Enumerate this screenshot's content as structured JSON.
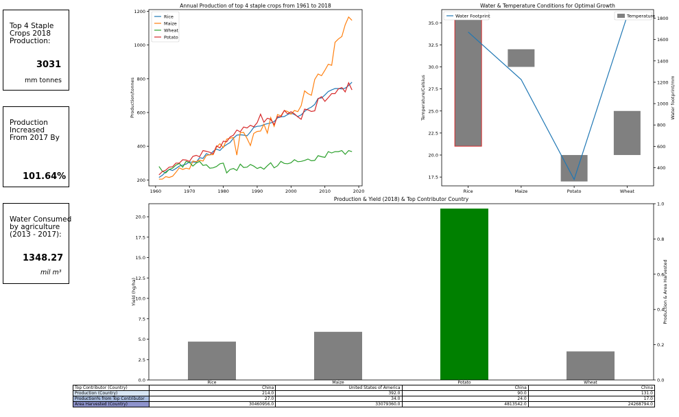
{
  "kpis": [
    {
      "label": "Top 4 Staple\nCrops 2018\nProduction:",
      "value": "3031",
      "unit": "mm tonnes"
    },
    {
      "label": "Production\nIncreased\nFrom 2017 By",
      "value": "101.64%",
      "unit": ""
    },
    {
      "label": "Water Consumed\nby agriculture\n(2013 - 2017):",
      "value": "1348.27",
      "unit": "mil m³"
    }
  ],
  "chart_data": [
    {
      "type": "line",
      "title": "Annual Production of top 4 staple crops from 1961 to 2018",
      "xlabel": "",
      "ylabel": "Production/tonnes",
      "xlim": [
        1958,
        2021
      ],
      "ylim": [
        165,
        1210
      ],
      "xticks": [
        1960,
        1970,
        1980,
        1990,
        2000,
        2010,
        2020
      ],
      "yticks": [
        200,
        400,
        600,
        800,
        1000,
        1200
      ],
      "legend": "top-left",
      "x": [
        1961,
        1962,
        1963,
        1964,
        1965,
        1966,
        1967,
        1968,
        1969,
        1970,
        1971,
        1972,
        1973,
        1974,
        1975,
        1976,
        1977,
        1978,
        1979,
        1980,
        1981,
        1982,
        1983,
        1984,
        1985,
        1986,
        1987,
        1988,
        1989,
        1990,
        1991,
        1992,
        1993,
        1994,
        1995,
        1996,
        1997,
        1998,
        1999,
        2000,
        2001,
        2002,
        2003,
        2004,
        2005,
        2006,
        2007,
        2008,
        2009,
        2010,
        2011,
        2012,
        2013,
        2014,
        2015,
        2016,
        2017,
        2018
      ],
      "series": [
        {
          "name": "Rice",
          "color": "#1f77b4",
          "values": [
            215,
            228,
            248,
            262,
            256,
            268,
            282,
            288,
            294,
            306,
            306,
            305,
            332,
            328,
            356,
            348,
            370,
            383,
            375,
            396,
            410,
            422,
            448,
            466,
            468,
            466,
            462,
            484,
            512,
            518,
            520,
            528,
            534,
            538,
            546,
            568,
            574,
            576,
            588,
            596,
            588,
            576,
            586,
            606,
            622,
            632,
            648,
            684,
            686,
            704,
            724,
            734,
            742,
            742,
            740,
            744,
            760,
            780
          ]
        },
        {
          "name": "Maize",
          "color": "#ff7f0e",
          "values": [
            205,
            205,
            220,
            215,
            222,
            245,
            272,
            262,
            270,
            265,
            312,
            308,
            318,
            312,
            345,
            350,
            350,
            395,
            415,
            392,
            442,
            448,
            452,
            347,
            480,
            482,
            446,
            404,
            476,
            488,
            490,
            530,
            478,
            570,
            518,
            588,
            580,
            612,
            606,
            590,
            612,
            605,
            640,
            728,
            712,
            702,
            796,
            828,
            818,
            850,
            886,
            880,
            1016,
            1036,
            1050,
            1120,
            1166,
            1146
          ]
        },
        {
          "name": "Wheat",
          "color": "#2ca02c",
          "values": [
            280,
            252,
            242,
            262,
            270,
            288,
            298,
            276,
            310,
            304,
            282,
            300,
            310,
            286,
            290,
            270,
            272,
            280,
            296,
            300,
            242,
            262,
            268,
            256,
            294,
            274,
            276,
            292,
            282,
            268,
            276,
            264,
            284,
            302,
            272,
            284,
            310,
            298,
            296,
            302,
            320,
            308,
            310,
            316,
            324,
            314,
            316,
            344,
            338,
            334,
            368,
            360,
            368,
            368,
            374,
            352,
            374,
            368
          ]
        },
        {
          "name": "Potato",
          "color": "#d62728",
          "values": [
            230,
            250,
            258,
            276,
            278,
            300,
            300,
            320,
            318,
            310,
            340,
            346,
            338,
            374,
            370,
            364,
            355,
            402,
            390,
            430,
            426,
            455,
            466,
            496,
            486,
            514,
            508,
            524,
            515,
            540,
            590,
            542,
            566,
            560,
            528,
            576,
            574,
            612,
            592,
            605,
            592,
            574,
            560,
            620,
            616,
            606,
            610,
            680,
            694,
            666,
            688,
            712,
            712,
            740,
            748,
            722,
            776,
            734
          ]
        }
      ]
    },
    {
      "type": "line",
      "title": "Water & Temperature Conditions for Optimal Growth",
      "categories": [
        "Rice",
        "Maize",
        "Potato",
        "Wheat"
      ],
      "ylabel": "Temperature/Celsius",
      "ylabel_right": "Water footprint/mm",
      "ylim": [
        16.5,
        36.5
      ],
      "yticks": [
        17.5,
        20.0,
        22.5,
        25.0,
        27.5,
        30.0,
        32.5,
        35.0
      ],
      "ylim_right": [
        230,
        1880
      ],
      "yticks_right": [
        400,
        600,
        800,
        1000,
        1200,
        1400,
        1600,
        1800
      ],
      "temperature_ranges": [
        [
          21,
          36
        ],
        [
          30,
          32
        ],
        [
          17,
          20
        ],
        [
          20,
          25
        ]
      ],
      "temperature_color": "#808080",
      "highlight": {
        "category": "Rice",
        "color": "#d62728"
      },
      "series": [
        {
          "name": "Water Footprint",
          "color": "#1f77b4",
          "values": [
            1670,
            1225,
            290,
            1820
          ]
        },
        {
          "name": "Temperature",
          "color": "#808080"
        }
      ],
      "marker": {
        "category": "Wheat",
        "value": 1820,
        "color": "#d62728"
      }
    },
    {
      "type": "bar",
      "title": "Production & Yield (2018) & Top Contributor Country",
      "categories": [
        "Rice",
        "Maize",
        "Potato",
        "Wheat"
      ],
      "values": [
        4.7,
        5.9,
        21.0,
        3.5
      ],
      "colors": [
        "#808080",
        "#808080",
        "#008000",
        "#808080"
      ],
      "ylabel": "Yield (hg/ha)",
      "ylabel_right": "Production & Area Harvested",
      "ylim": [
        0,
        21.6
      ],
      "yticks": [
        0.0,
        2.5,
        5.0,
        7.5,
        10.0,
        12.5,
        15.0,
        17.5,
        20.0
      ],
      "ylim_right": [
        0,
        1.0
      ],
      "yticks_right": [
        0.0,
        0.2,
        0.4,
        0.6,
        0.8,
        1.0
      ]
    }
  ],
  "table": {
    "rows": [
      {
        "label": "Top Contributor (Country)",
        "color": "#ffffff",
        "cells": [
          "China",
          "United States of America",
          "China",
          "China"
        ]
      },
      {
        "label": "Production (Country)",
        "color": "#d8e6f4",
        "cells": [
          "214.0",
          "392.0",
          "90.0",
          "131.0"
        ]
      },
      {
        "label": "Production% from Top Contributor",
        "color": "#a9bde0",
        "cells": [
          "27.0",
          "34.0",
          "24.0",
          "17.0"
        ]
      },
      {
        "label": "Area Harvested (Country)",
        "color": "#8e93cc",
        "cells": [
          "30460956.0",
          "33079360.0",
          "4813542.0",
          "24268794.0"
        ]
      }
    ]
  }
}
